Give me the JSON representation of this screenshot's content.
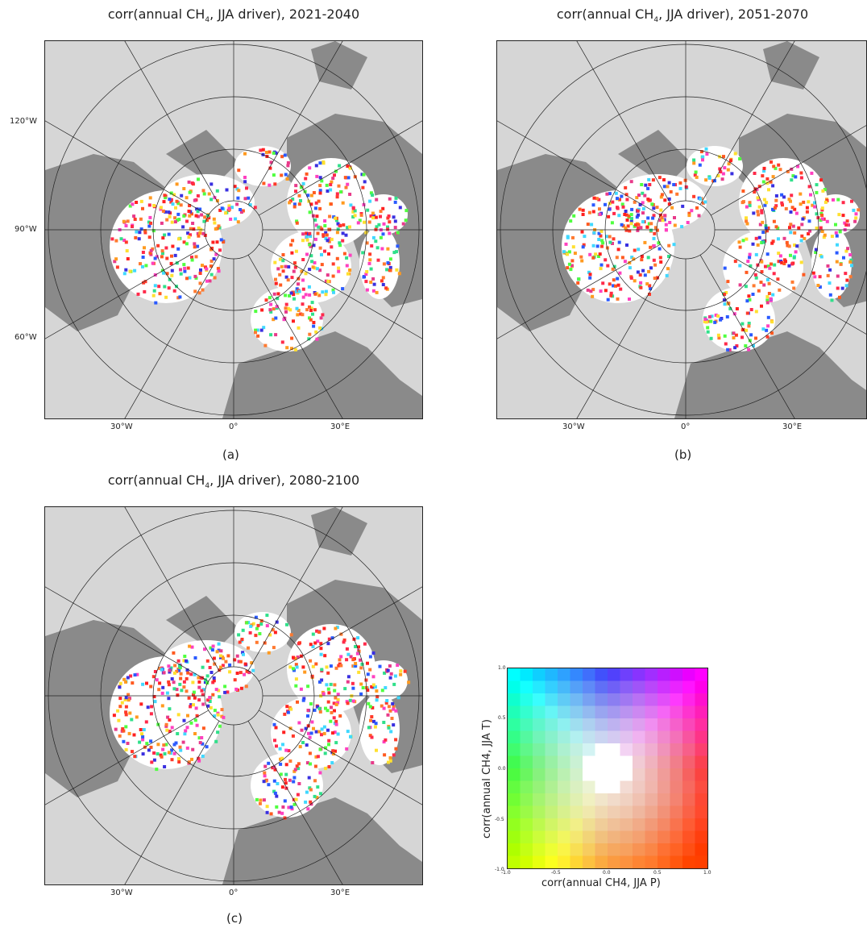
{
  "panels": [
    {
      "id": "a",
      "title_prefix": "corr(annual CH",
      "title_sub": "4",
      "title_suffix": ", JJA driver), 2021-2040",
      "label": "(a)",
      "lat_labels": [
        "120°W",
        "90°W",
        "60°W"
      ],
      "lon_labels": [
        "30°W",
        "0°",
        "30°E"
      ]
    },
    {
      "id": "b",
      "title_prefix": "corr(annual CH",
      "title_sub": "4",
      "title_suffix": ", JJA driver), 2051-2070",
      "label": "(b)",
      "lat_labels": [],
      "lon_labels": [
        "30°W",
        "0°",
        "30°E"
      ]
    },
    {
      "id": "c",
      "title_prefix": "corr(annual CH",
      "title_sub": "4",
      "title_suffix": ", JJA driver), 2080-2100",
      "label": "(c)",
      "lat_labels": [],
      "lon_labels": [
        "30°W",
        "0°",
        "30°E"
      ]
    }
  ],
  "legend": {
    "xlabel": "corr(annual CH4, JJA P)",
    "ylabel": "corr(annual CH4, JJA T)",
    "x_ticks": [
      "-1.0",
      "-0.5",
      "0.0",
      "0.5",
      "1.0"
    ],
    "y_ticks": [
      "1.0",
      "0.5",
      "0.0",
      "-0.5",
      "-1.0"
    ]
  },
  "colors": {
    "ocean": "#d6d6d6",
    "land": "#8a8a8a",
    "permafrost": "#ffffff",
    "grid": "#222222"
  }
}
